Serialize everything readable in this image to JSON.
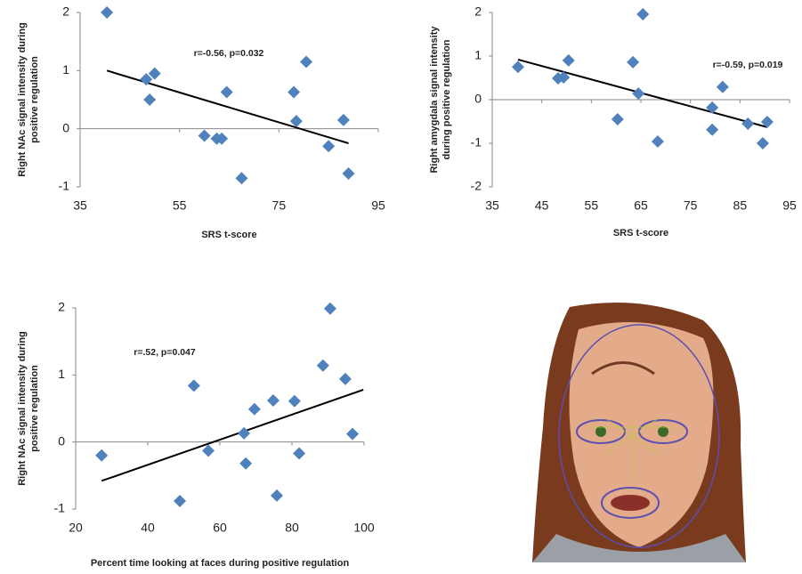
{
  "chart_data": [
    {
      "type": "scatter",
      "xlabel": "SRS t-score",
      "ylabel": [
        "Right NAc signal intensity during",
        "positive regulation"
      ],
      "annotation": "r=-0.56, p=0.032",
      "color": "#4f81bd",
      "x": [
        40.4,
        48.3,
        50,
        49,
        64.5,
        60,
        62.5,
        63.5,
        67.5,
        78,
        78.5,
        80.5,
        88,
        85,
        89
      ],
      "values": [
        2.0,
        0.85,
        0.95,
        0.5,
        0.63,
        -0.12,
        -0.17,
        -0.17,
        -0.85,
        0.63,
        0.13,
        1.15,
        0.15,
        -0.3,
        -0.77
      ],
      "trendline": {
        "x": [
          40.4,
          89
        ],
        "values": [
          1.0,
          -0.25
        ]
      },
      "xlim": [
        35,
        95
      ],
      "xticks": [
        35,
        55,
        75,
        95
      ],
      "ylim": [
        -1,
        2
      ],
      "yticks": [
        -1,
        0,
        1,
        2
      ]
    },
    {
      "type": "scatter",
      "xlabel": "SRS t-score",
      "ylabel": [
        "Right amygdala signal intensity",
        "during positive regulation"
      ],
      "annotation": "r=-0.59, p=0.019",
      "color": "#4f81bd",
      "x": [
        40.2,
        48.3,
        49.4,
        50.4,
        60.3,
        63.4,
        64.5,
        65.4,
        68.4,
        79.4,
        79.4,
        81.5,
        86.6,
        89.6,
        90.5
      ],
      "values": [
        0.75,
        0.49,
        0.51,
        0.9,
        -0.45,
        0.86,
        0.14,
        1.96,
        -0.96,
        -0.18,
        -0.69,
        0.29,
        -0.55,
        -1.0,
        -0.51
      ],
      "trendline": {
        "x": [
          40.2,
          90.5
        ],
        "values": [
          0.92,
          -0.63
        ]
      },
      "xlim": [
        35,
        95
      ],
      "xticks": [
        35,
        45,
        55,
        65,
        75,
        85,
        95
      ],
      "ylim": [
        -2,
        2
      ],
      "yticks": [
        -2,
        -1,
        0,
        1,
        2
      ]
    },
    {
      "type": "scatter",
      "xlabel": "Percent time looking at faces during positive regulation",
      "ylabel": [
        "Right NAc signal intensity during",
        "positive regulation"
      ],
      "annotation": "r=.52, p=0.047",
      "color": "#4f81bd",
      "x": [
        27.2,
        48.9,
        52.8,
        56.8,
        66.7,
        67.2,
        69.6,
        74.8,
        75.8,
        80.7,
        82,
        88.6,
        90.6,
        94.8,
        96.8
      ],
      "values": [
        -0.2,
        -0.88,
        0.84,
        -0.13,
        0.13,
        -0.32,
        0.49,
        0.62,
        -0.8,
        0.61,
        -0.17,
        1.14,
        1.99,
        0.94,
        0.12
      ],
      "trendline": {
        "x": [
          27.2,
          99.8
        ],
        "values": [
          -0.58,
          0.78
        ]
      },
      "xlim": [
        20,
        100
      ],
      "xticks": [
        20,
        40,
        60,
        80,
        100
      ],
      "ylim": [
        -1,
        2
      ],
      "yticks": [
        -1,
        0,
        1,
        2
      ]
    }
  ]
}
